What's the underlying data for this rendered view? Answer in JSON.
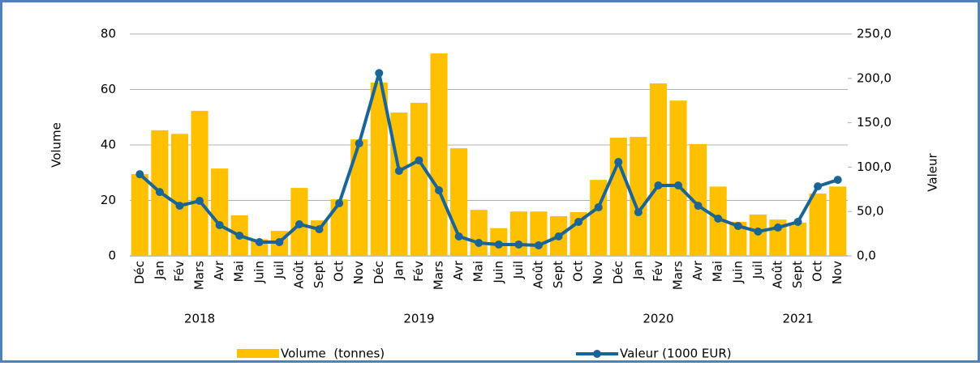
{
  "chart_data": {
    "type": "bar-line",
    "categories": [
      "Déc",
      "Jan",
      "Fév",
      "Mars",
      "Avr",
      "Mai",
      "Juin",
      "Juil",
      "Août",
      "Sept",
      "Oct",
      "Nov",
      "Déc",
      "Jan",
      "Fév",
      "Mars",
      "Avr",
      "Mai",
      "Juin",
      "Juil",
      "Août",
      "Sept",
      "Oct",
      "Nov",
      "Déc",
      "Jan",
      "Fév",
      "Mars",
      "Avr",
      "Mai",
      "Juin",
      "Juil",
      "Août",
      "Sept",
      "Oct",
      "Nov"
    ],
    "x_groups": [
      "2018",
      "2019",
      "2020",
      "2021"
    ],
    "ylabel": "Volume",
    "y2label": "Valeur",
    "ylim": [
      0,
      80
    ],
    "yticks": [
      0,
      20,
      40,
      60,
      80
    ],
    "y2lim": [
      0,
      250
    ],
    "y2ticks": [
      {
        "value": 0,
        "label": "0,0"
      },
      {
        "value": 50,
        "label": "50,0"
      },
      {
        "value": 100,
        "label": "100,0"
      },
      {
        "value": 150,
        "label": "150,0"
      },
      {
        "value": 200,
        "label": "200,0"
      },
      {
        "value": 250,
        "label": "250,0"
      }
    ],
    "grid": true,
    "series": [
      {
        "name": "Volume  (tonnes)",
        "type": "bar",
        "color": "#ffc000",
        "values": [
          29.5,
          45.3,
          44,
          52.3,
          31.5,
          14.6,
          6,
          9,
          24.5,
          12.8,
          20.4,
          42,
          62.5,
          51.7,
          55.2,
          73,
          38.8,
          16.6,
          10,
          16,
          16,
          14.3,
          15.8,
          27.4,
          42.6,
          42.9,
          62.2,
          56,
          40.3,
          25,
          12.3,
          14.9,
          13.1,
          12,
          22.5,
          25
        ]
      },
      {
        "name": "Valeur (1000 EUR)",
        "type": "line",
        "axis": "y2",
        "color": "#1a6496",
        "values": [
          92,
          72,
          56.5,
          62,
          34.7,
          22.8,
          15.5,
          15.5,
          35.6,
          30,
          59.3,
          126.8,
          206,
          95.8,
          107.6,
          73.9,
          21.9,
          14.6,
          12.8,
          12.8,
          11.9,
          21.9,
          38.3,
          54.7,
          105.8,
          49.2,
          79.4,
          79.4,
          56.5,
          42,
          33.7,
          27.4,
          31.9,
          38.3,
          78.4,
          85.7
        ]
      }
    ]
  }
}
